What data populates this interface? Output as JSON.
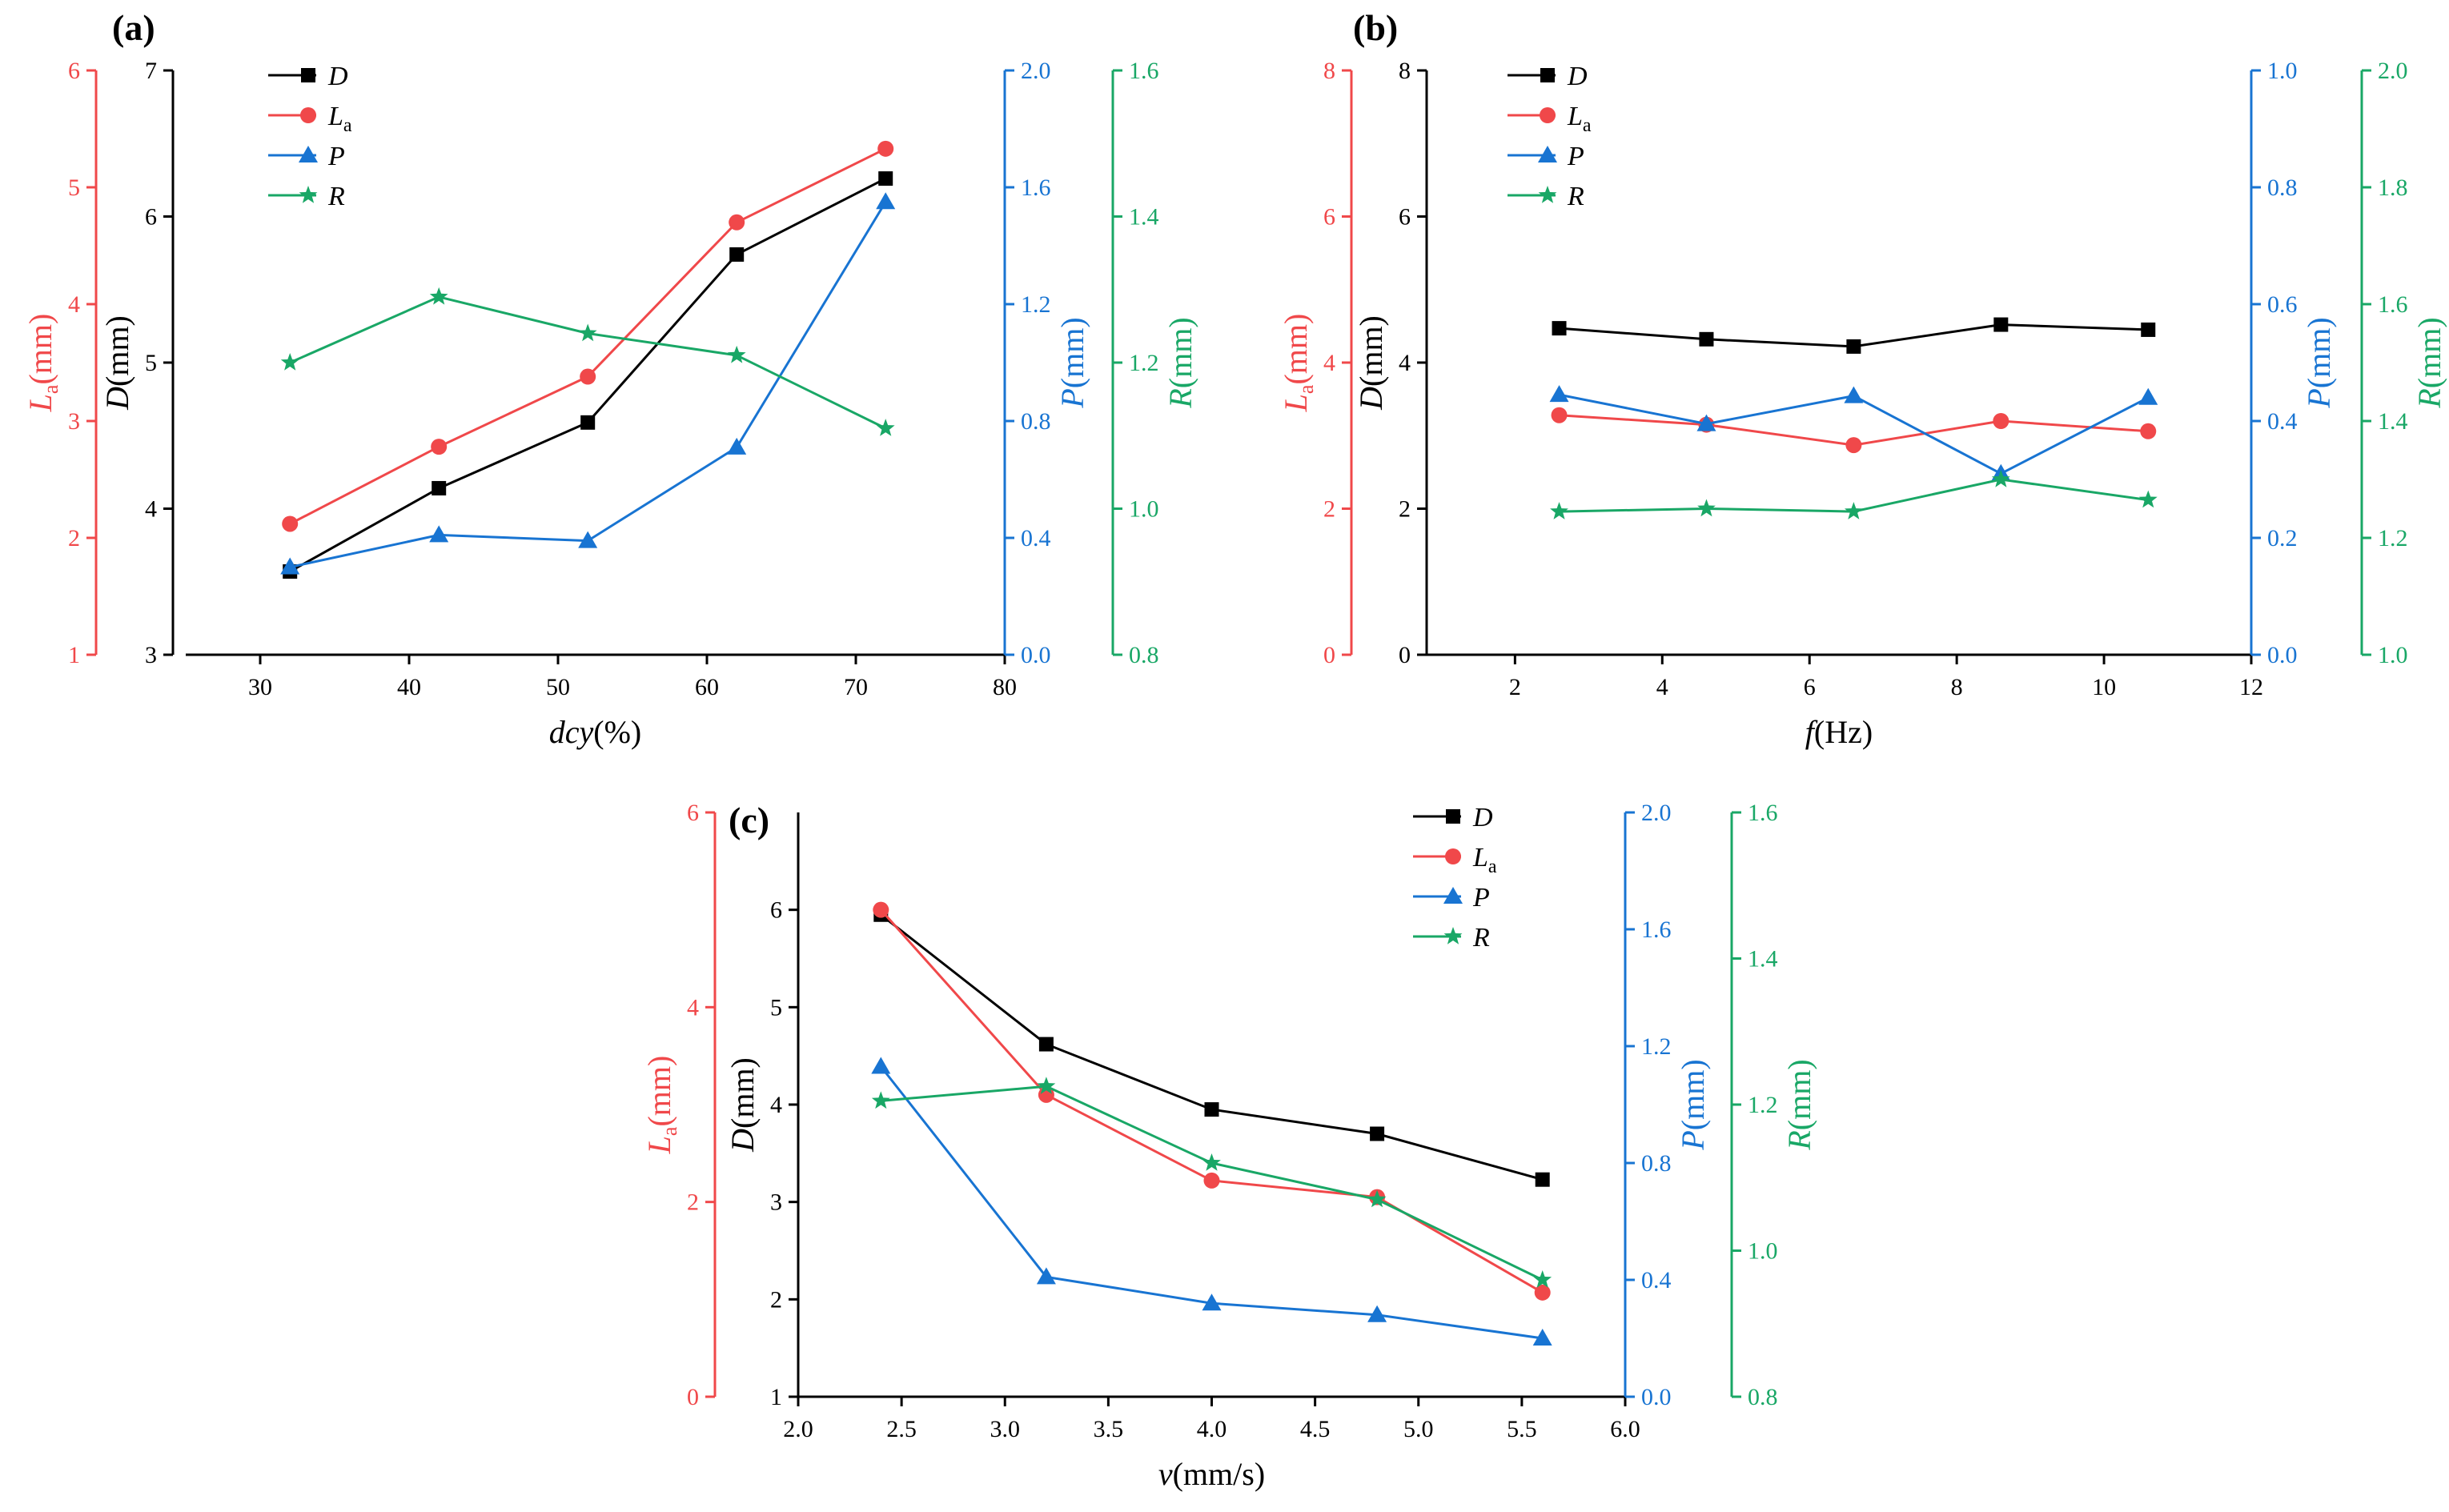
{
  "colors": {
    "D": "#000000",
    "La": "#f0484a",
    "P": "#1874d2",
    "R": "#19a766"
  },
  "chart_data": [
    {
      "type": "line",
      "panel_label": "(a)",
      "x": [
        32,
        42,
        52,
        62,
        72
      ],
      "xlim": [
        25,
        80
      ],
      "xticks": [
        30,
        40,
        50,
        60,
        70,
        80
      ],
      "xlabel": {
        "italic": "dcy",
        "normal": "(%)"
      },
      "axes": {
        "D": {
          "label": "D(mm)",
          "lim": [
            3,
            7
          ],
          "ticks": [
            "3",
            "4",
            "5",
            "6",
            "7"
          ]
        },
        "La": {
          "label": "La(mm)",
          "lim": [
            1,
            6
          ],
          "ticks": [
            "1",
            "2",
            "3",
            "4",
            "5",
            "6"
          ]
        },
        "P": {
          "label": "P(mm)",
          "lim": [
            0,
            2
          ],
          "ticks": [
            "0.0",
            "0.4",
            "0.8",
            "1.2",
            "1.6",
            "2.0"
          ]
        },
        "R": {
          "label": "R(mm)",
          "lim": [
            0.8,
            1.6
          ],
          "ticks": [
            "0.8",
            "1.0",
            "1.2",
            "1.4",
            "1.6"
          ]
        }
      },
      "series": [
        {
          "name": "D",
          "axis": "D",
          "marker": "square",
          "values": [
            3.57,
            4.14,
            4.59,
            5.74,
            6.26
          ]
        },
        {
          "name": "La",
          "axis": "La",
          "marker": "circle",
          "values": [
            2.12,
            2.78,
            3.38,
            4.7,
            5.33
          ]
        },
        {
          "name": "P",
          "axis": "P",
          "marker": "triangle",
          "values": [
            0.3,
            0.41,
            0.39,
            0.71,
            1.55
          ]
        },
        {
          "name": "R",
          "axis": "R",
          "marker": "star",
          "values": [
            1.2,
            1.29,
            1.24,
            1.21,
            1.11
          ]
        }
      ],
      "legend": [
        "D",
        "La",
        "P",
        "R"
      ]
    },
    {
      "type": "line",
      "panel_label": "(b)",
      "x": [
        2.6,
        4.6,
        6.6,
        8.6,
        10.6
      ],
      "xlim": [
        0.8,
        12
      ],
      "xticks": [
        2,
        4,
        6,
        8,
        10,
        12
      ],
      "xlabel": {
        "italic": "f",
        "normal": "(Hz)"
      },
      "axes": {
        "D": {
          "label": "D(mm)",
          "lim": [
            0,
            8
          ],
          "ticks": [
            "0",
            "2",
            "4",
            "6",
            "8"
          ]
        },
        "La": {
          "label": "La(mm)",
          "lim": [
            0,
            8
          ],
          "ticks": [
            "0",
            "2",
            "4",
            "6",
            "8"
          ]
        },
        "P": {
          "label": "P(mm)",
          "lim": [
            0,
            1
          ],
          "ticks": [
            "0.0",
            "0.2",
            "0.4",
            "0.6",
            "0.8",
            "1.0"
          ]
        },
        "R": {
          "label": "R(mm)",
          "lim": [
            1,
            2
          ],
          "ticks": [
            "1.0",
            "1.2",
            "1.4",
            "1.6",
            "1.8",
            "2.0"
          ]
        }
      },
      "series": [
        {
          "name": "D",
          "axis": "D",
          "marker": "square",
          "values": [
            4.47,
            4.32,
            4.22,
            4.52,
            4.45
          ]
        },
        {
          "name": "La",
          "axis": "La",
          "marker": "circle",
          "values": [
            3.28,
            3.15,
            2.87,
            3.2,
            3.06
          ]
        },
        {
          "name": "P",
          "axis": "P",
          "marker": "triangle",
          "values": [
            0.445,
            0.395,
            0.443,
            0.31,
            0.44
          ]
        },
        {
          "name": "R",
          "axis": "R",
          "marker": "star",
          "values": [
            1.245,
            1.25,
            1.245,
            1.3,
            1.265
          ]
        }
      ],
      "legend": [
        "D",
        "La",
        "P",
        "R"
      ]
    },
    {
      "type": "line",
      "panel_label": "(c)",
      "x": [
        2.4,
        3.2,
        4.0,
        4.8,
        5.6
      ],
      "xlim": [
        2,
        6
      ],
      "xticks": [
        "2.0",
        "2.5",
        "3.0",
        "3.5",
        "4.0",
        "4.5",
        "5.0",
        "5.5",
        "6.0"
      ],
      "xlabel": {
        "italic": "v",
        "normal": "(mm/s)"
      },
      "axes": {
        "D": {
          "label": "D(mm)",
          "lim": [
            1,
            7
          ],
          "ticks": [
            "1",
            "2",
            "3",
            "4",
            "5",
            "6"
          ]
        },
        "La": {
          "label": "La(mm)",
          "lim": [
            0,
            6
          ],
          "ticks": [
            "0",
            "2",
            "4",
            "6"
          ]
        },
        "P": {
          "label": "P(mm)",
          "lim": [
            0,
            2
          ],
          "ticks": [
            "0.0",
            "0.4",
            "0.8",
            "1.2",
            "1.6",
            "2.0"
          ]
        },
        "R": {
          "label": "R(mm)",
          "lim": [
            0.8,
            1.6
          ],
          "ticks": [
            "0.8",
            "1.0",
            "1.2",
            "1.4",
            "1.6"
          ]
        }
      },
      "series": [
        {
          "name": "D",
          "axis": "D",
          "marker": "square",
          "values": [
            5.95,
            4.62,
            3.95,
            3.7,
            3.23
          ]
        },
        {
          "name": "La",
          "axis": "La",
          "marker": "circle",
          "values": [
            5.0,
            3.1,
            2.22,
            2.05,
            1.07
          ]
        },
        {
          "name": "P",
          "axis": "P",
          "marker": "triangle",
          "values": [
            1.13,
            0.41,
            0.32,
            0.28,
            0.2
          ]
        },
        {
          "name": "R",
          "axis": "R",
          "marker": "star",
          "values": [
            1.205,
            1.225,
            1.12,
            1.07,
            0.96
          ]
        }
      ],
      "legend": [
        "D",
        "La",
        "P",
        "R"
      ]
    }
  ]
}
